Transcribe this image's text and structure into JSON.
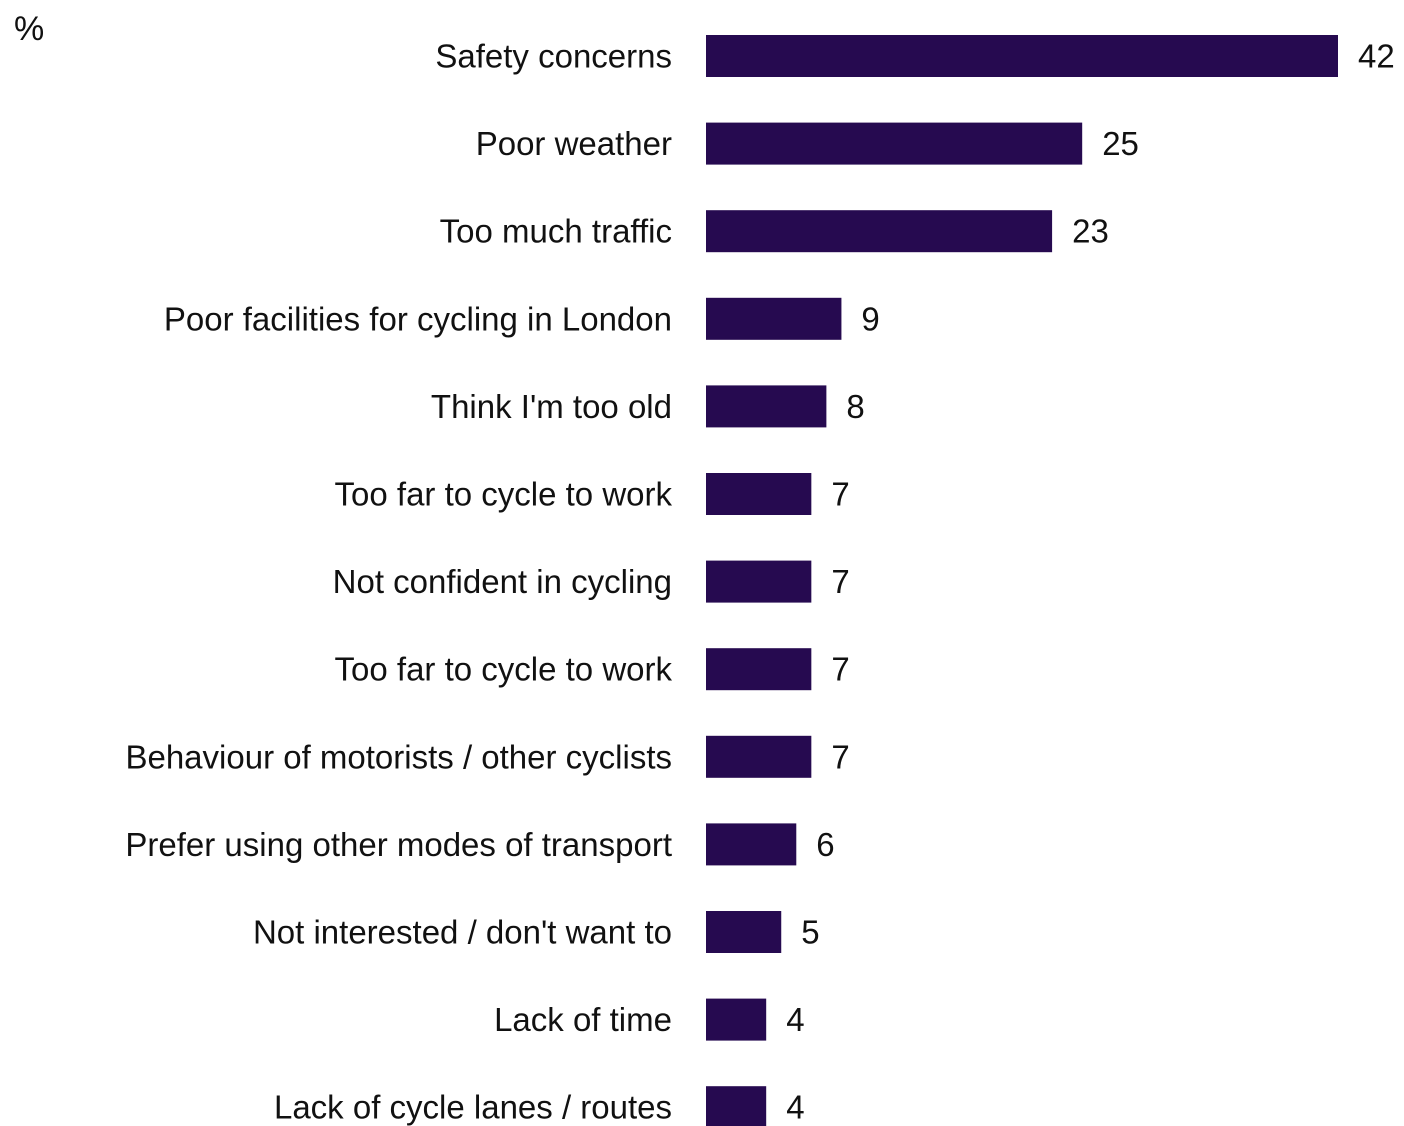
{
  "chart_data": {
    "type": "bar",
    "orientation": "horizontal",
    "unit": "%",
    "categories": [
      "Safety concerns",
      "Poor weather",
      "Too much traffic",
      "Poor facilities for cycling in London",
      "Think I'm too old",
      "Too far to cycle to work",
      "Not confident in cycling",
      "Too far to cycle to work",
      "Behaviour of motorists / other cyclists",
      "Prefer using other modes of transport",
      "Not interested / don't want to",
      "Lack of time",
      "Lack of cycle lanes / routes"
    ],
    "values": [
      42,
      25,
      23,
      9,
      8,
      7,
      7,
      7,
      7,
      6,
      5,
      4,
      4
    ],
    "data_labels": [
      "42",
      "25",
      "23",
      "9",
      "8",
      "7",
      "7",
      "7",
      "7",
      "6",
      "5",
      "4",
      "4"
    ],
    "xlim": [
      0,
      42
    ],
    "grid": false,
    "legend": "none",
    "bar_color": "#260a50"
  }
}
